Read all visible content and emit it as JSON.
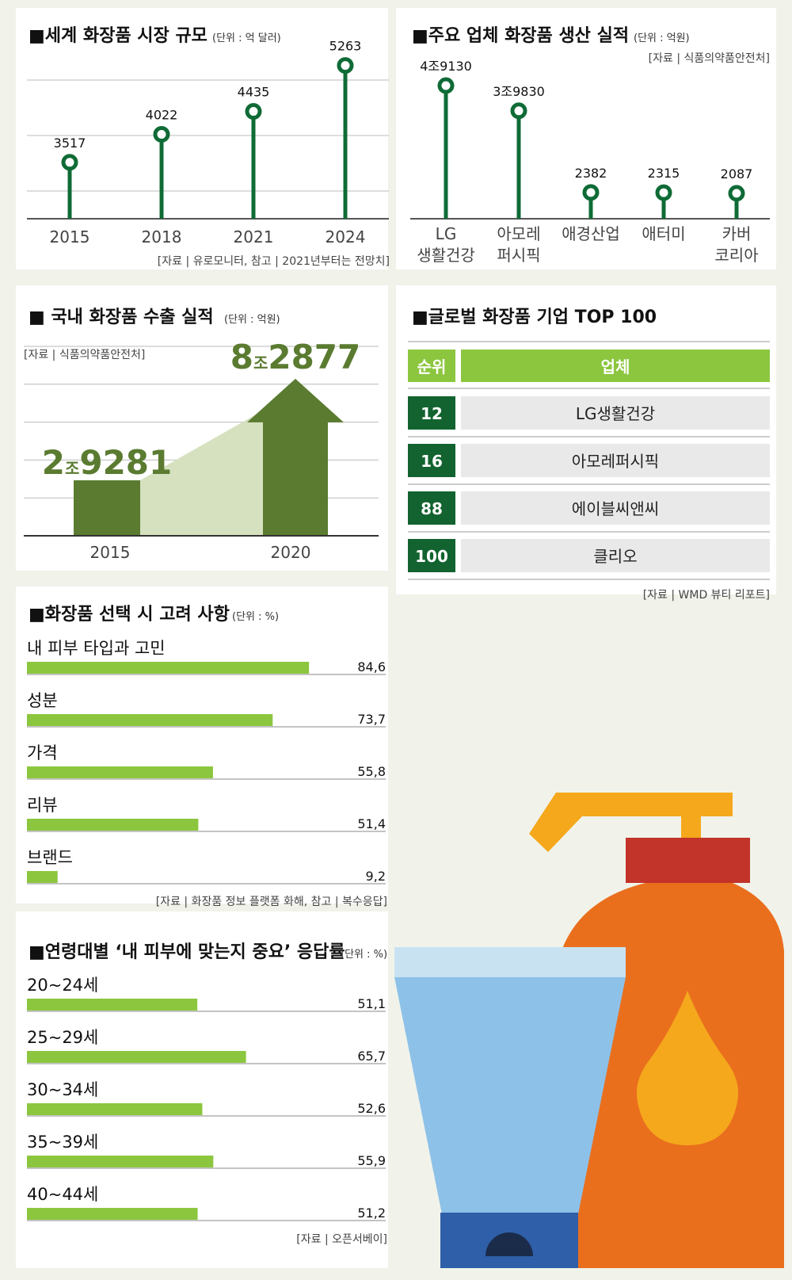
{
  "colors": {
    "dark_green": "#0f6b36",
    "rank_green": "#12632f",
    "lime": "#8cc63f",
    "olive": "#5a7b30",
    "light_olive": "#d6e1bf",
    "grid": "#bbbbbb"
  },
  "market": {
    "title": "■세계 화장품 시장 규모",
    "unit": "(단위 : 억 달러)",
    "source": "[자료 | 유로모니터, 참고 | 2021년부터는 전망치]",
    "chart_data": {
      "type": "lollipop",
      "categories": [
        "2015",
        "2018",
        "2021",
        "2024"
      ],
      "values": [
        3517,
        4022,
        4435,
        5263
      ],
      "ylim": [
        2500,
        5800
      ],
      "grid": true
    }
  },
  "production": {
    "title": "■주요 업체 화장품 생산 실적",
    "unit": "(단위 : 억원)",
    "source": "[자료 | 식품의약품안전처]",
    "chart_data": {
      "type": "lollipop",
      "categories": [
        [
          "LG",
          "생활건강"
        ],
        [
          "아모레",
          "퍼시픽"
        ],
        [
          "애경산업"
        ],
        [
          "애터미"
        ],
        [
          "카버",
          "코리아"
        ]
      ],
      "values": [
        49130,
        39830,
        2382,
        2315,
        2087
      ],
      "value_labels": [
        "4조9130",
        "3조9830",
        "2382",
        "2315",
        "2087"
      ]
    }
  },
  "export": {
    "title": "■ 국내 화장품 수출 실적",
    "unit": "(단위 : 억원)",
    "source": "[자료 | 식품의약품안전처]",
    "chart_data": {
      "type": "bar",
      "categories": [
        "2015",
        "2020"
      ],
      "values": [
        29281,
        82877
      ],
      "value_labels": [
        {
          "jo": "2",
          "unit": "조",
          "rest": "9281"
        },
        {
          "jo": "8",
          "unit": "조",
          "rest": "2877"
        }
      ],
      "ylim": [
        0,
        100000
      ],
      "grid": true
    }
  },
  "top100": {
    "title": "■글로벌 화장품 기업 TOP 100",
    "headers": [
      "순위",
      "업체"
    ],
    "rows": [
      {
        "rank": "12",
        "name": "LG생활건강"
      },
      {
        "rank": "16",
        "name": "아모레퍼시픽"
      },
      {
        "rank": "88",
        "name": "에이블씨앤씨"
      },
      {
        "rank": "100",
        "name": "클리오"
      }
    ],
    "source": "[자료 | WMD 뷰티 리포트]"
  },
  "factors": {
    "title": "■화장품 선택 시 고려 사항",
    "unit": "(단위 : %)",
    "source": "[자료 | 화장품 정보 플랫폼 화해, 참고 | 복수응답]",
    "chart_data": {
      "type": "bar",
      "orientation": "horizontal",
      "categories": [
        "내 피부 타입과 고민",
        "성분",
        "가격",
        "리뷰",
        "브랜드"
      ],
      "values": [
        84.6,
        73.7,
        55.8,
        51.4,
        9.2
      ],
      "value_labels": [
        "84,6",
        "73,7",
        "55,8",
        "51,4",
        "9,2"
      ],
      "xlim": [
        0,
        100
      ]
    }
  },
  "age": {
    "title": "■연령대별 ‘내 피부에 맞는지 중요’ 응답률",
    "unit": "(단위 : %)",
    "source": "[자료 | 오픈서베이]",
    "chart_data": {
      "type": "bar",
      "orientation": "horizontal",
      "categories": [
        "20~24세",
        "25~29세",
        "30~34세",
        "35~39세",
        "40~44세"
      ],
      "values": [
        51.1,
        65.7,
        52.6,
        55.9,
        51.2
      ],
      "value_labels": [
        "51,1",
        "65,7",
        "52,6",
        "55,9",
        "51,2"
      ],
      "xlim": [
        0,
        100
      ]
    }
  }
}
